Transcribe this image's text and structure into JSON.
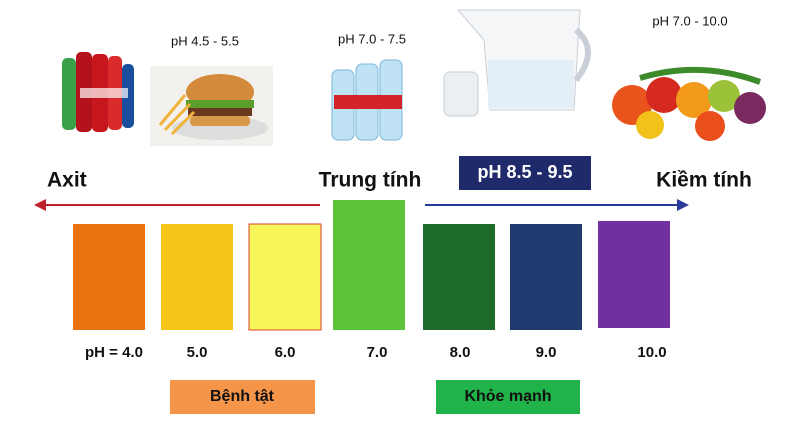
{
  "foods": [
    {
      "label": "pH 4.5 - 5.5"
    },
    {
      "label": "pH 7.0 - 7.5"
    },
    {
      "label": "pH 7.0 - 10.0"
    }
  ],
  "filter_label": "pH 8.5 - 9.5",
  "scale": {
    "left_label": "Axit",
    "middle_label": "Trung tính",
    "right_label": "Kiềm tính",
    "levels": [
      {
        "label": "pH =  4.0",
        "color": "#e8720f"
      },
      {
        "label": "5.0",
        "color": "#f5c518"
      },
      {
        "label": "6.0",
        "color": "#f7f55a"
      },
      {
        "label": "7.0",
        "color": "#5cc43a"
      },
      {
        "label": "8.0",
        "color": "#1f6b2a"
      },
      {
        "label": "9.0",
        "color": "#1f3a6e"
      },
      {
        "label": "10.0",
        "color": "#7030a0"
      }
    ]
  },
  "badges": {
    "sick": "Bệnh tật",
    "healthy": "Khỏe mạnh"
  }
}
